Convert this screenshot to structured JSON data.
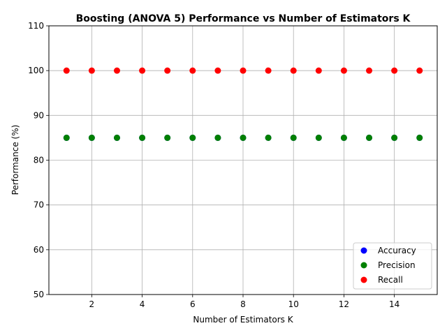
{
  "chart_data": {
    "type": "scatter",
    "title": "Boosting (ANOVA 5) Performance vs Number of Estimators K",
    "xlabel": "Number of Estimators K",
    "ylabel": "Performance (%)",
    "xlim": [
      0.3,
      15.7
    ],
    "ylim": [
      50,
      110
    ],
    "xticks": [
      2,
      4,
      6,
      8,
      10,
      12,
      14
    ],
    "yticks": [
      50,
      60,
      70,
      80,
      90,
      100,
      110
    ],
    "grid": true,
    "legend_position": "lower-right",
    "x": [
      1,
      2,
      3,
      4,
      5,
      6,
      7,
      8,
      9,
      10,
      11,
      12,
      13,
      14,
      15
    ],
    "series": [
      {
        "name": "Accuracy",
        "color": "#0000ff",
        "values": [
          85,
          85,
          85,
          85,
          85,
          85,
          85,
          85,
          85,
          85,
          85,
          85,
          85,
          85,
          85
        ]
      },
      {
        "name": "Precision",
        "color": "#008000",
        "values": [
          85,
          85,
          85,
          85,
          85,
          85,
          85,
          85,
          85,
          85,
          85,
          85,
          85,
          85,
          85
        ]
      },
      {
        "name": "Recall",
        "color": "#ff0000",
        "values": [
          100,
          100,
          100,
          100,
          100,
          100,
          100,
          100,
          100,
          100,
          100,
          100,
          100,
          100,
          100
        ]
      }
    ]
  }
}
